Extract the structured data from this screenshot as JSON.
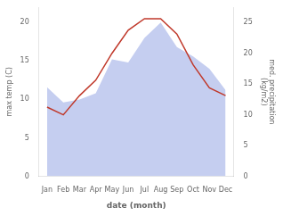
{
  "chart_data": {
    "type": "line",
    "xlabel": "date (month)",
    "ylabel": "max temp (C)",
    "y2label": "med. precipitation\n(kg/m2)",
    "categories": [
      "Jan",
      "Feb",
      "Mar",
      "Apr",
      "May",
      "Jun",
      "Jul",
      "Aug",
      "Sep",
      "Oct",
      "Nov",
      "Dec"
    ],
    "series": [
      {
        "type": "area",
        "axis": "y2",
        "color": "#c5cef0",
        "values": [
          14.5,
          12.0,
          12.5,
          13.5,
          19.0,
          18.5,
          22.5,
          25.0,
          21.0,
          19.5,
          17.5,
          14.0
        ]
      },
      {
        "type": "line",
        "color": "#c0392b",
        "values": [
          9.0,
          8.0,
          10.5,
          12.5,
          16.0,
          19.0,
          20.5,
          20.5,
          18.5,
          14.5,
          11.5,
          10.5
        ]
      }
    ],
    "ylim": [
      0,
      22
    ],
    "yticks": [
      0,
      5,
      10,
      15,
      20
    ],
    "y2lim": [
      0,
      27.5
    ],
    "y2ticks": [
      0,
      5,
      10,
      15,
      20,
      25
    ],
    "grid": false
  }
}
